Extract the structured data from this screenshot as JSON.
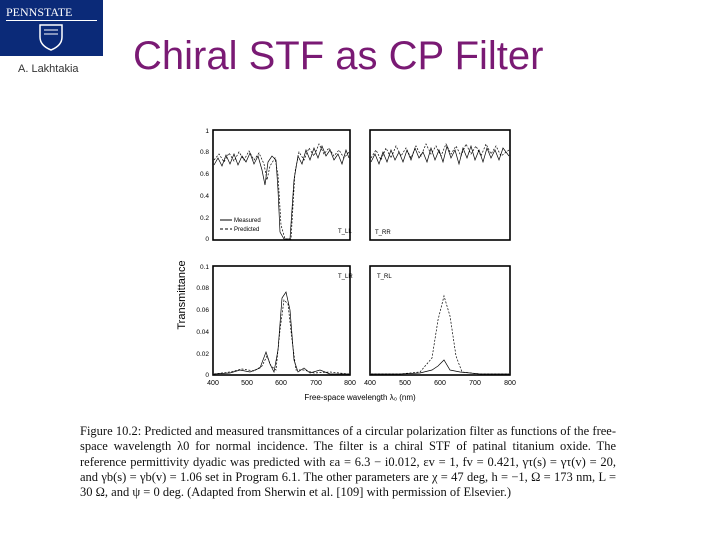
{
  "header": {
    "logo_text": "PENNSTATE",
    "author": "A. Lakhtakia",
    "title": "Chiral STF as CP Filter"
  },
  "figure": {
    "ylabel": "Transmittance",
    "xlabel": "Free-space wavelength λ₀ (nm)",
    "x_ticks": [
      "400",
      "500",
      "600",
      "700",
      "800"
    ],
    "top_y_ticks": [
      "1",
      "0.8",
      "0.6",
      "0.4",
      "0.2",
      "0"
    ],
    "bottom_y_ticks": [
      "0.1",
      "0.08",
      "0.06",
      "0.04",
      "0.02",
      "0"
    ],
    "legend": [
      "Measured",
      "Predicted"
    ],
    "panel_labels": [
      "T_LL",
      "T_RR",
      "T_LR",
      "T_RL"
    ]
  },
  "caption": "Figure 10.2: Predicted and measured transmittances of a circular polarization filter as functions of the free-space wavelength λ0 for normal incidence. The filter is a chiral STF of patinal titanium oxide. The reference permittivity dyadic was predicted with εa = 6.3 − i0.012, εv = 1, fv = 0.421, γτ(s) = γτ(v) = 20, and γb(s) = γb(v) = 1.06 set in Program 6.1. The other parameters are χ = 47 deg, h = −1, Ω = 173 nm, L = 30 Ω, and ψ = 0 deg. (Adapted from Sherwin et al. [109] with permission of Elsevier.)"
}
